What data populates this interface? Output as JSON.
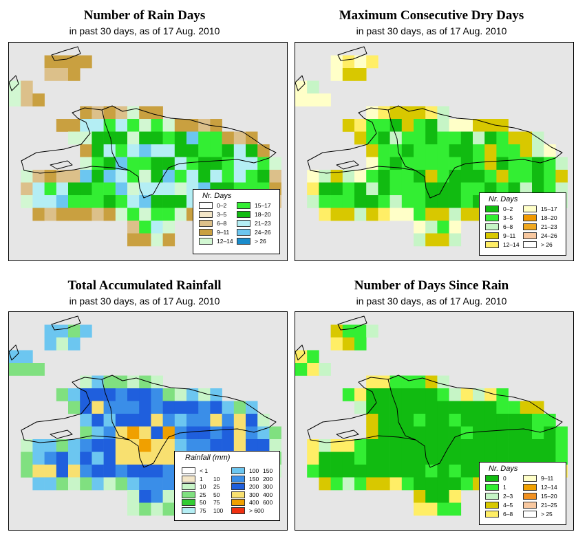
{
  "panels": [
    {
      "title": "Number of Rain Days",
      "subtitle": "in past 30 days, as of  17 Aug. 2010",
      "legend_title": "Nr. Days",
      "legend": [
        {
          "label": "0–2",
          "color": "#ffffff"
        },
        {
          "label": "3–5",
          "color": "#f3e6c8"
        },
        {
          "label": "6–8",
          "color": "#dcc08a"
        },
        {
          "label": "9–11",
          "color": "#c9a040"
        },
        {
          "label": "12–14",
          "color": "#d2f7d2"
        },
        {
          "label": "15–17",
          "color": "#33ee33"
        },
        {
          "label": "18–20",
          "color": "#11bb11"
        },
        {
          "label": "21–23",
          "color": "#b4eef4"
        },
        {
          "label": "24–26",
          "color": "#6cc6f0"
        },
        {
          "label": "> 26",
          "color": "#1a8ccc"
        }
      ]
    },
    {
      "title": "Maximum Consecutive Dry Days",
      "subtitle": "in past 30 days, as of  17 Aug. 2010",
      "legend_title": "Nr. Days",
      "legend": [
        {
          "label": "0–2",
          "color": "#11bb11"
        },
        {
          "label": "3–5",
          "color": "#33ee33"
        },
        {
          "label": "6–8",
          "color": "#c6f5c6"
        },
        {
          "label": "9–11",
          "color": "#d8c800"
        },
        {
          "label": "12–14",
          "color": "#ffee66"
        },
        {
          "label": "15–17",
          "color": "#ffffc8"
        },
        {
          "label": "18–20",
          "color": "#f09800"
        },
        {
          "label": "21–23",
          "color": "#f0a820"
        },
        {
          "label": "24–26",
          "color": "#f8c8a0"
        },
        {
          "label": "> 26",
          "color": "#ffffff"
        }
      ]
    },
    {
      "title": "Total Accumulated Rainfall",
      "subtitle": "in past 30 days, as of  17 Aug. 2010",
      "legend_title": "Rainfall (mm)",
      "legend": [
        {
          "label": [
            "< 1"
          ],
          "color": "#ffffff"
        },
        {
          "label": [
            "1",
            "10"
          ],
          "color": "#f3e6c8"
        },
        {
          "label": [
            "10",
            "25"
          ],
          "color": "#c8f5c8"
        },
        {
          "label": [
            "25",
            "50"
          ],
          "color": "#80e080"
        },
        {
          "label": [
            "50",
            "75"
          ],
          "color": "#33cc33"
        },
        {
          "label": [
            "75",
            "100"
          ],
          "color": "#b4eef4"
        },
        {
          "label": [
            "100",
            "150"
          ],
          "color": "#6cc6f0"
        },
        {
          "label": [
            "150",
            "200"
          ],
          "color": "#3a8ee8"
        },
        {
          "label": [
            "200",
            "300"
          ],
          "color": "#1f5fdd"
        },
        {
          "label": [
            "300",
            "400"
          ],
          "color": "#f8e070"
        },
        {
          "label": [
            "400",
            "600"
          ],
          "color": "#f0a000"
        },
        {
          "label": [
            "> 600"
          ],
          "color": "#f03010"
        }
      ]
    },
    {
      "title": "Number of Days Since Rain",
      "subtitle": "in past 30 days, as of  17 Aug. 2010",
      "legend_title": "Nr. Days",
      "legend": [
        {
          "label": "0",
          "color": "#11bb11"
        },
        {
          "label": "1",
          "color": "#33ee33"
        },
        {
          "label": "2–3",
          "color": "#c6f5c6"
        },
        {
          "label": "4–5",
          "color": "#d8c800"
        },
        {
          "label": "6–8",
          "color": "#ffee66"
        },
        {
          "label": "9–11",
          "color": "#ffffc8"
        },
        {
          "label": "12–14",
          "color": "#f0a000"
        },
        {
          "label": "15–20",
          "color": "#f09020"
        },
        {
          "label": "21–25",
          "color": "#f8c8a0"
        },
        {
          "label": "> 25",
          "color": "#ffffff"
        }
      ]
    }
  ]
}
